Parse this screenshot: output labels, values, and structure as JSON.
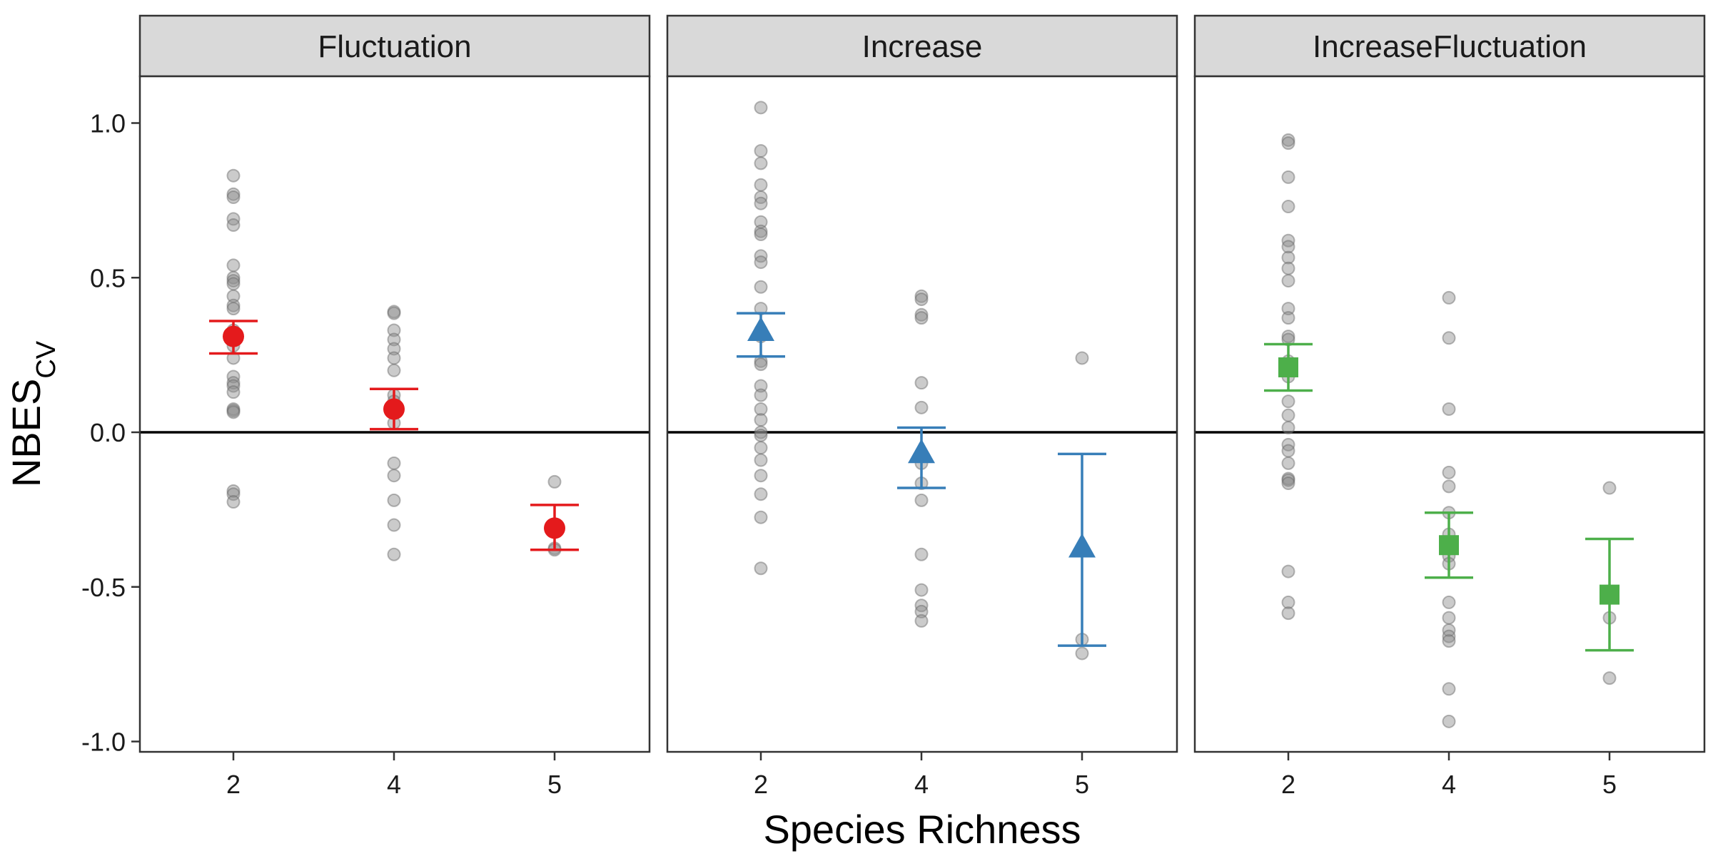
{
  "chart_data": {
    "type": "scatter",
    "xlabel": "Species Richness",
    "ylabel_main": "NBES",
    "ylabel_sub": "CV",
    "ylim": [
      -1.05,
      1.2
    ],
    "yticks": [
      -1.0,
      -0.5,
      0.0,
      0.5,
      1.0
    ],
    "ytick_labels": [
      "-1.0",
      "-0.5",
      "0.0",
      "0.5",
      "1.0"
    ],
    "categories": [
      "2",
      "4",
      "5"
    ],
    "reference_line_y": 0,
    "grid": false,
    "colors": {
      "points": "#8c8c8c",
      "strip_fill": "#d9d9d9",
      "panel_border": "#333333",
      "zero_line": "#000000"
    },
    "panels": [
      {
        "name": "Fluctuation",
        "color": "#e41a1c",
        "marker": "circle",
        "summary": [
          {
            "x": "2",
            "mean": 0.31,
            "lower": 0.255,
            "upper": 0.36
          },
          {
            "x": "4",
            "mean": 0.075,
            "lower": 0.01,
            "upper": 0.14
          },
          {
            "x": "5",
            "mean": -0.31,
            "lower": -0.38,
            "upper": -0.235
          }
        ],
        "points": [
          {
            "x": "2",
            "y": [
              0.83,
              0.77,
              0.76,
              0.69,
              0.67,
              0.54,
              0.5,
              0.49,
              0.48,
              0.44,
              0.41,
              0.4,
              0.33,
              0.28,
              0.24,
              0.18,
              0.16,
              0.15,
              0.13,
              0.075,
              0.07,
              0.065,
              -0.19,
              -0.2,
              -0.225
            ]
          },
          {
            "x": "4",
            "y": [
              0.39,
              0.385,
              0.33,
              0.3,
              0.27,
              0.24,
              0.2,
              0.12,
              0.1,
              0.07,
              0.03,
              -0.1,
              -0.14,
              -0.22,
              -0.3,
              -0.395
            ]
          },
          {
            "x": "5",
            "y": [
              -0.16,
              -0.375,
              -0.38
            ]
          }
        ]
      },
      {
        "name": "Increase",
        "color": "#377eb8",
        "marker": "triangle",
        "summary": [
          {
            "x": "2",
            "mean": 0.325,
            "lower": 0.245,
            "upper": 0.385
          },
          {
            "x": "4",
            "mean": -0.07,
            "lower": -0.18,
            "upper": 0.015
          },
          {
            "x": "5",
            "mean": -0.375,
            "lower": -0.69,
            "upper": -0.07
          }
        ],
        "points": [
          {
            "x": "2",
            "y": [
              1.05,
              0.91,
              0.87,
              0.8,
              0.76,
              0.74,
              0.68,
              0.65,
              0.64,
              0.57,
              0.55,
              0.47,
              0.4,
              0.33,
              0.31,
              0.23,
              0.22,
              0.15,
              0.12,
              0.075,
              0.04,
              0.0,
              -0.01,
              -0.05,
              -0.09,
              -0.14,
              -0.2,
              -0.275,
              -0.44
            ]
          },
          {
            "x": "4",
            "y": [
              0.44,
              0.43,
              0.38,
              0.37,
              0.16,
              0.08,
              -0.1,
              -0.165,
              -0.22,
              -0.395,
              -0.51,
              -0.56,
              -0.58,
              -0.61
            ]
          },
          {
            "x": "5",
            "y": [
              0.24,
              -0.67,
              -0.715
            ]
          }
        ]
      },
      {
        "name": "IncreaseFluctuation",
        "color": "#4daf4a",
        "marker": "square",
        "summary": [
          {
            "x": "2",
            "mean": 0.21,
            "lower": 0.135,
            "upper": 0.285
          },
          {
            "x": "4",
            "mean": -0.365,
            "lower": -0.47,
            "upper": -0.26
          },
          {
            "x": "5",
            "mean": -0.525,
            "lower": -0.705,
            "upper": -0.345
          }
        ],
        "points": [
          {
            "x": "2",
            "y": [
              0.945,
              0.935,
              0.825,
              0.73,
              0.62,
              0.6,
              0.565,
              0.53,
              0.49,
              0.4,
              0.37,
              0.31,
              0.3,
              0.23,
              0.18,
              0.1,
              0.055,
              0.015,
              -0.04,
              -0.06,
              -0.1,
              -0.15,
              -0.155,
              -0.165,
              -0.45,
              -0.55,
              -0.585
            ]
          },
          {
            "x": "4",
            "y": [
              0.435,
              0.305,
              0.075,
              -0.13,
              -0.175,
              -0.26,
              -0.33,
              -0.4,
              -0.425,
              -0.55,
              -0.6,
              -0.64,
              -0.66,
              -0.675,
              -0.83,
              -0.935
            ]
          },
          {
            "x": "5",
            "y": [
              -0.18,
              -0.6,
              -0.795
            ]
          }
        ]
      }
    ]
  }
}
